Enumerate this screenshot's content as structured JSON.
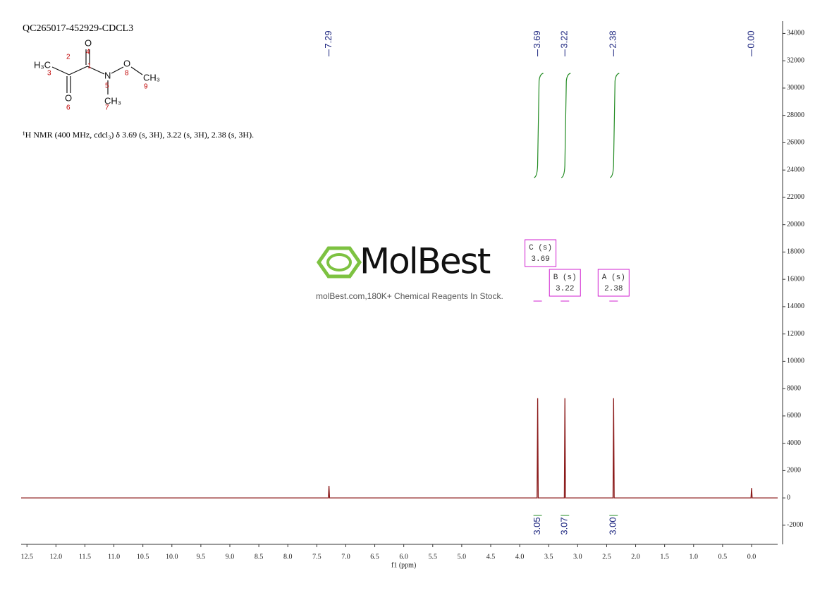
{
  "chart_data": {
    "type": "nmr",
    "title": "QC265017-452929-CDCL3",
    "subtitle": "¹H NMR (400 MHz, cdcl₃) δ 3.69 (s, 3H), 3.22 (s, 3H), 2.38 (s, 3H).",
    "xlabel": "f1 (ppm)",
    "color": "#8b1a1a",
    "x": [
      12.6,
      7.3,
      7.29,
      7.28,
      3.7,
      3.69,
      3.68,
      3.23,
      3.22,
      3.21,
      2.39,
      2.38,
      2.37,
      0.01,
      0,
      -0.01,
      -0.45
    ],
    "values": [
      0,
      0,
      880,
      0,
      0,
      7300,
      0,
      0,
      7300,
      0,
      0,
      7300,
      0,
      0,
      720,
      0,
      0
    ],
    "xlim": [
      12.6,
      -0.45
    ],
    "ylim": [
      -3400,
      34900
    ],
    "xticks": [
      12.5,
      {
        "value": 12,
        "label": "12.0"
      },
      11.5,
      {
        "value": 11,
        "label": "11.0"
      },
      10.5,
      {
        "value": 10,
        "label": "10.0"
      },
      9.5,
      {
        "value": 9,
        "label": "9.0"
      },
      8.5,
      {
        "value": 8,
        "label": "8.0"
      },
      7.5,
      {
        "value": 7,
        "label": "7.0"
      },
      6.5,
      {
        "value": 6,
        "label": "6.0"
      },
      5.5,
      {
        "value": 5,
        "label": "5.0"
      },
      4.5,
      {
        "value": 4,
        "label": "4.0"
      },
      3.5,
      {
        "value": 3,
        "label": "3.0"
      },
      2.5,
      {
        "value": 2,
        "label": "2.0"
      },
      1.5,
      {
        "value": 1,
        "label": "1.0"
      },
      0.5,
      {
        "value": 0,
        "label": "0.0"
      }
    ],
    "yticks": [
      -2000,
      0,
      2000,
      4000,
      6000,
      8000,
      10000,
      12000,
      14000,
      16000,
      18000,
      20000,
      22000,
      24000,
      26000,
      28000,
      30000,
      32000,
      34000
    ],
    "peaks": {
      "values": [
        7.29,
        3.69,
        3.22,
        2.38,
        0
      ],
      "value_labels": [
        "7.29",
        "3.69",
        "3.22",
        "2.38",
        "0.00"
      ]
    },
    "integrals": {
      "x": [
        3.69,
        3.22,
        2.38
      ],
      "values": [
        3.05,
        3.07,
        3
      ],
      "value_labels": [
        "3.05",
        "3.07",
        "3.00"
      ]
    },
    "multiplets": [
      {
        "label": "C (s)",
        "shift": 3.69
      },
      {
        "label": "B (s)",
        "shift": 3.22
      },
      {
        "label": "A (s)",
        "shift": 2.38
      }
    ]
  },
  "structure": {
    "atoms": [
      "H₃C",
      "O",
      "N",
      "O",
      "CH₃",
      "O",
      "CH₃"
    ],
    "numbers": [
      "1",
      "2",
      "3",
      "4",
      "5",
      "6",
      "7",
      "8",
      "9"
    ]
  },
  "watermark": {
    "brand": "MolBest",
    "tagline": "molBest.com,180K+ Chemical Reagents In Stock."
  }
}
